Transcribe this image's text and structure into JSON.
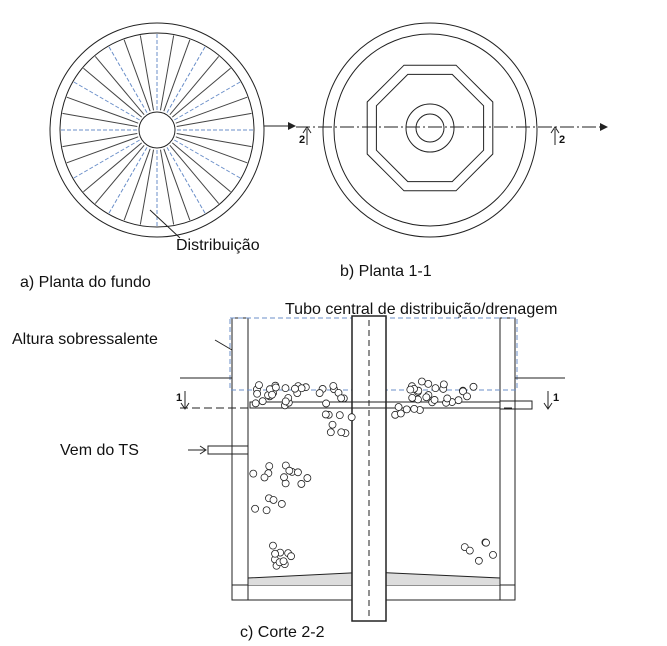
{
  "plan_a": {
    "label": "Distribuição",
    "caption": "a) Planta do fundo"
  },
  "plan_b": {
    "caption": "b) Planta 1-1",
    "section_marks": [
      "2",
      "2"
    ]
  },
  "section": {
    "caption": "c) Corte 2-2",
    "labels": {
      "tube": "Tubo central de distribuição/drenagem",
      "freeboard": "Altura sobressalente",
      "inlet": "Vem do TS"
    },
    "section_marks": [
      "1",
      "1"
    ]
  }
}
